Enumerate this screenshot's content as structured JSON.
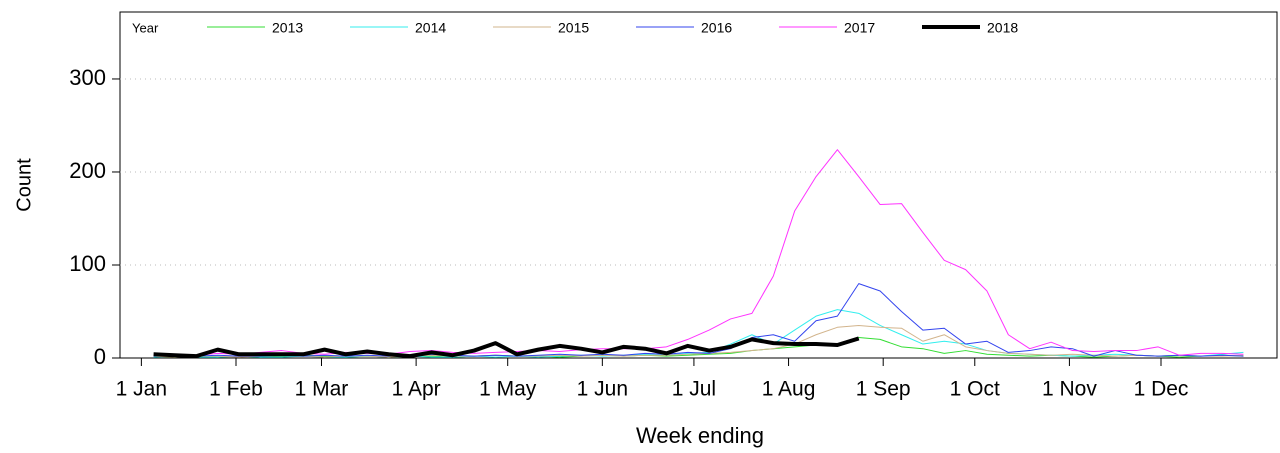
{
  "chart_data": {
    "type": "line",
    "x_label": "Week ending",
    "y_label": "Count",
    "legend_title": "Year",
    "x": [
      4,
      11,
      18,
      25,
      32,
      39,
      46,
      53,
      60,
      67,
      74,
      81,
      88,
      95,
      102,
      109,
      116,
      123,
      130,
      137,
      144,
      151,
      158,
      165,
      172,
      179,
      186,
      193,
      200,
      207,
      214,
      221,
      228,
      235,
      242,
      249,
      256,
      263,
      270,
      277,
      284,
      291,
      298,
      305,
      312,
      319,
      326,
      333,
      340,
      347,
      354,
      361
    ],
    "xlim": [
      -7,
      372
    ],
    "xticks": [
      {
        "value": 0,
        "label": "1 Jan"
      },
      {
        "value": 31,
        "label": "1 Feb"
      },
      {
        "value": 59,
        "label": "1 Mar"
      },
      {
        "value": 90,
        "label": "1 Apr"
      },
      {
        "value": 120,
        "label": "1 May"
      },
      {
        "value": 151,
        "label": "1 Jun"
      },
      {
        "value": 181,
        "label": "1 Jul"
      },
      {
        "value": 212,
        "label": "1 Aug"
      },
      {
        "value": 243,
        "label": "1 Sep"
      },
      {
        "value": 273,
        "label": "1 Oct"
      },
      {
        "value": 304,
        "label": "1 Nov"
      },
      {
        "value": 334,
        "label": "1 Dec"
      }
    ],
    "ylim": [
      0,
      372
    ],
    "yticks": [
      0,
      100,
      200,
      300
    ],
    "grid": true,
    "series": [
      {
        "name": "2013",
        "color": "#33dd33",
        "width": 1,
        "values": [
          2,
          1,
          2,
          1,
          2,
          1,
          2,
          3,
          2,
          1,
          2,
          1,
          2,
          2,
          1,
          2,
          3,
          2,
          2,
          1,
          2,
          3,
          2,
          3,
          2,
          3,
          4,
          5,
          8,
          10,
          12,
          14,
          15,
          22,
          20,
          12,
          10,
          5,
          8,
          4,
          3,
          2,
          3,
          2,
          1,
          2,
          3,
          2,
          1,
          2,
          3,
          2
        ]
      },
      {
        "name": "2014",
        "color": "#33eeee",
        "width": 1,
        "values": [
          1,
          2,
          1,
          1,
          2,
          1,
          1,
          2,
          1,
          1,
          2,
          1,
          2,
          1,
          1,
          2,
          1,
          2,
          1,
          2,
          3,
          2,
          3,
          4,
          3,
          5,
          6,
          15,
          25,
          15,
          30,
          45,
          52,
          48,
          35,
          25,
          15,
          18,
          15,
          8,
          5,
          4,
          3,
          2,
          3,
          4,
          3,
          2,
          3,
          2,
          4,
          6
        ]
      },
      {
        "name": "2015",
        "color": "#d2b48c",
        "width": 1,
        "values": [
          2,
          1,
          2,
          2,
          1,
          2,
          3,
          2,
          1,
          2,
          2,
          1,
          2,
          3,
          2,
          2,
          3,
          2,
          2,
          3,
          2,
          3,
          2,
          3,
          3,
          4,
          5,
          6,
          8,
          10,
          15,
          25,
          33,
          35,
          33,
          32,
          18,
          25,
          12,
          8,
          5,
          4,
          3,
          4,
          3,
          2,
          3,
          2,
          3,
          2,
          2,
          3
        ]
      },
      {
        "name": "2016",
        "color": "#3344ee",
        "width": 1,
        "values": [
          2,
          3,
          2,
          3,
          2,
          2,
          3,
          2,
          3,
          2,
          3,
          2,
          3,
          4,
          3,
          2,
          3,
          2,
          3,
          4,
          3,
          4,
          3,
          5,
          4,
          6,
          5,
          10,
          22,
          25,
          18,
          40,
          45,
          80,
          72,
          50,
          30,
          32,
          15,
          18,
          6,
          8,
          12,
          10,
          2,
          8,
          3,
          2,
          3,
          2,
          3,
          2
        ]
      },
      {
        "name": "2017",
        "color": "#ff33ff",
        "width": 1,
        "values": [
          3,
          4,
          3,
          5,
          4,
          6,
          8,
          5,
          4,
          6,
          5,
          4,
          7,
          8,
          6,
          5,
          6,
          7,
          8,
          7,
          9,
          10,
          10,
          10,
          12,
          20,
          30,
          42,
          48,
          88,
          158,
          195,
          224,
          195,
          165,
          166,
          135,
          105,
          95,
          72,
          25,
          10,
          17,
          8,
          7,
          8,
          8,
          12,
          3,
          5,
          5,
          4
        ]
      },
      {
        "name": "2018",
        "color": "#000000",
        "width": 4,
        "values": [
          4,
          3,
          2,
          9,
          4,
          4,
          4,
          4,
          9,
          4,
          7,
          4,
          2,
          6,
          3,
          8,
          16,
          4,
          9,
          13,
          10,
          6,
          12,
          10,
          5,
          13,
          8,
          12,
          20,
          16,
          15,
          15,
          14,
          21,
          null,
          null,
          null,
          null,
          null,
          null,
          null,
          null,
          null,
          null,
          null,
          null,
          null,
          null,
          null,
          null,
          null,
          null
        ]
      }
    ]
  }
}
